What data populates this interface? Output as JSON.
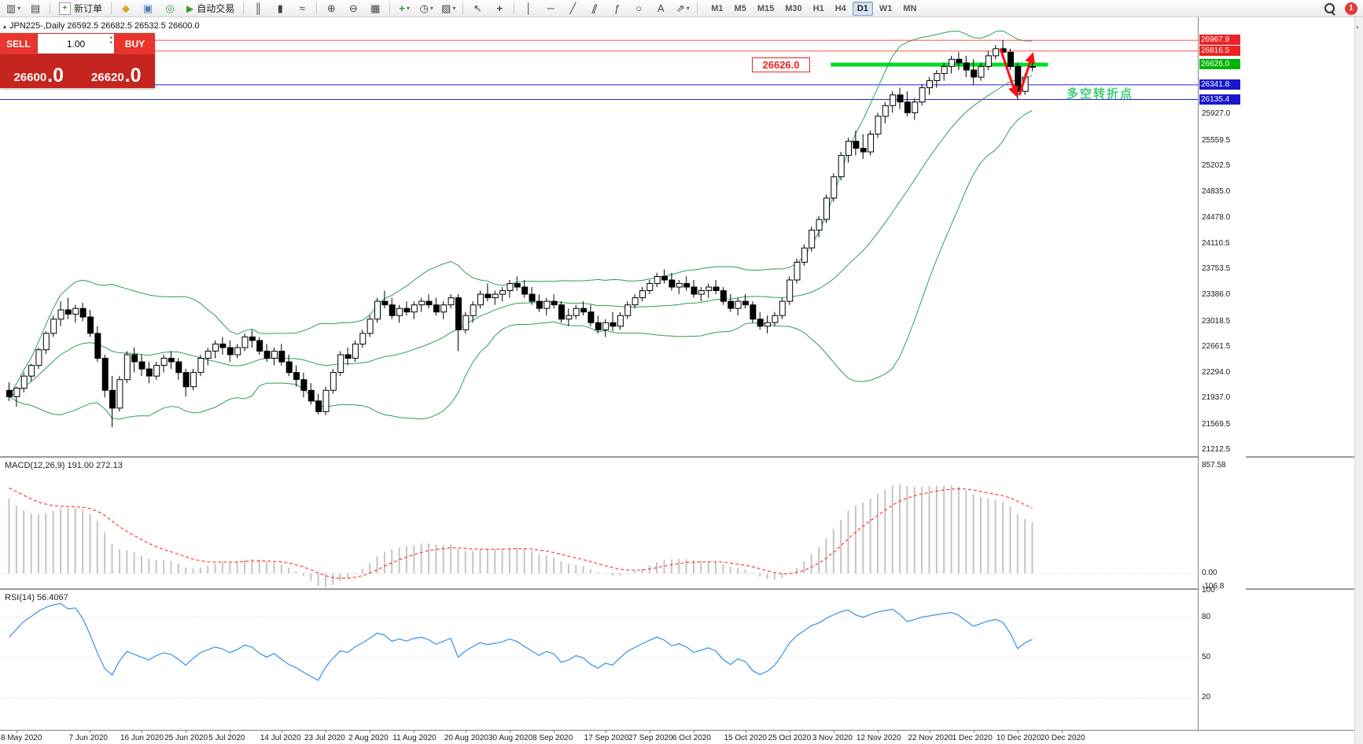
{
  "toolbar": {
    "new_order_label": "新订单",
    "auto_trading_label": "自动交易",
    "timeframes": [
      "M1",
      "M5",
      "M15",
      "M30",
      "H1",
      "H4",
      "D1",
      "W1",
      "MN"
    ],
    "active_timeframe": "D1",
    "notification_count": "1"
  },
  "icons": {
    "new_chart": "▥",
    "profiles": "▤",
    "new_order": "+",
    "market_watch": "◆",
    "data_window": "▣",
    "navigator": "◎",
    "auto_play": "▶",
    "chart_bars": "║",
    "chart_candles": "▮",
    "chart_line": "≈",
    "zoom_in": "⊕",
    "zoom_out": "⊖",
    "tile": "▦",
    "indicators_add": "+",
    "periods": "◷",
    "templates": "▧",
    "cursor": "↖",
    "crosshair": "+",
    "vline": "│",
    "hline": "─",
    "tline": "╱",
    "channel": "∥",
    "fibo": "ƒ",
    "shapes": "○",
    "text_tool": "A",
    "arrows": "⇗",
    "dropdown": "▾",
    "spin_up": "▴",
    "spin_down": "▾",
    "collapse": "▴",
    "scroll_up": "▴"
  },
  "chart_header": {
    "symbol_info": "JPN225-,Daily  26592.5 26682.5 26532.5 26600.0"
  },
  "trade_panel": {
    "sell_label": "SELL",
    "buy_label": "BUY",
    "volume": "1.00",
    "sell_price_main": "26600",
    "sell_price_frac": ".0",
    "buy_price_main": "26620",
    "buy_price_frac": ".0"
  },
  "annotations": {
    "pivot_label": "26626.0",
    "pivot_text": "多空转折点"
  },
  "indicators": {
    "macd_label": "MACD(12,26,9) 191.00 272.13",
    "macd_axis": [
      "857.58",
      "0.00",
      "-106.8"
    ],
    "rsi_label": "RSI(14) 56.4067",
    "rsi_axis": [
      "100",
      "80",
      "50",
      "20"
    ]
  },
  "colors": {
    "bands": "#2d9e55",
    "macd_hist": "#c4c4c4",
    "macd_signal": "#ff3b3b",
    "rsi_line": "#4596e8",
    "annotation_red": "#ff1111",
    "pivot_green": "#3ecf72",
    "candle_up": "#ffffff",
    "candle_down": "#000000"
  },
  "price_axis": {
    "labels": [
      "25927.0",
      "25559.5",
      "25202.5",
      "24835.0",
      "24478.0",
      "24110.5",
      "23753.5",
      "23386.0",
      "23018.5",
      "22661.5",
      "22294.0",
      "21937.0",
      "21569.5",
      "21212.5"
    ],
    "line_labels": [
      {
        "label": "26967.9",
        "price": 26967.9,
        "color": "#ee2222"
      },
      {
        "label": "26816.5",
        "price": 26816.5,
        "color": "#ee2222"
      },
      {
        "label": "26626.0",
        "price": 26626.0,
        "color": "#00b400"
      },
      {
        "label": "26341.8",
        "price": 26341.8,
        "color": "#1818cc"
      },
      {
        "label": "26135.4",
        "price": 26135.4,
        "color": "#1818cc"
      }
    ]
  },
  "time_axis": {
    "labels": [
      "8 May 2020",
      "7 Jun 2020",
      "16 Jun 2020",
      "25 Jun 2020",
      "5 Jul 2020",
      "14 Jul 2020",
      "23 Jul 2020",
      "2 Aug 2020",
      "11 Aug 2020",
      "20 Aug 2020",
      "30 Aug 2020",
      "8 Sep 2020",
      "17 Sep 2020",
      "27 Sep 2020",
      "6 Oct 2020",
      "15 Oct 2020",
      "25 Oct 2020",
      "3 Nov 2020",
      "12 Nov 2020",
      "22 Nov 2020",
      "1 Dec 2020",
      "10 Dec 2020",
      "20 Dec 2020"
    ],
    "bars": [
      1,
      11,
      18,
      24,
      30,
      37,
      43,
      49,
      55,
      62,
      68,
      74,
      81,
      87,
      93,
      100,
      106,
      112,
      118,
      125,
      131,
      137,
      143
    ]
  },
  "chart_data": {
    "type": "candlestick",
    "symbol": "JPN225",
    "period": "Daily",
    "current_ohlc": {
      "open": 26592.5,
      "high": 26682.5,
      "low": 26532.5,
      "close": 26600.0
    },
    "indicators": [
      "Bollinger Bands",
      "MACD(12,26,9)",
      "RSI(14)"
    ],
    "hlines": [
      {
        "price": 26967.9,
        "color": "#ff5555",
        "width": 1
      },
      {
        "price": 26816.5,
        "color": "#ff5555",
        "width": 1
      },
      {
        "price": 26626.0,
        "color": "#00dd22",
        "width": 5,
        "from_bar": 112,
        "to_bar": 141.5
      },
      {
        "price": 26341.8,
        "color": "#2222dd",
        "width": 1
      },
      {
        "price": 26135.4,
        "color": "#2222dd",
        "width": 1
      }
    ],
    "arrow_lines": [
      [
        1272,
        40,
        1292,
        99
      ],
      [
        1296,
        99,
        1313,
        47
      ]
    ],
    "ohlc": [
      [
        22050,
        22160,
        21900,
        21960
      ],
      [
        21960,
        22100,
        21820,
        22080
      ],
      [
        22080,
        22300,
        22020,
        22250
      ],
      [
        22250,
        22420,
        22180,
        22400
      ],
      [
        22400,
        22650,
        22350,
        22620
      ],
      [
        22620,
        22880,
        22560,
        22850
      ],
      [
        22850,
        23100,
        22800,
        23050
      ],
      [
        23050,
        23300,
        22950,
        23180
      ],
      [
        23180,
        23350,
        23050,
        23120
      ],
      [
        23120,
        23250,
        23000,
        23200
      ],
      [
        23200,
        23280,
        23020,
        23080
      ],
      [
        23080,
        23180,
        22800,
        22850
      ],
      [
        22850,
        22950,
        22450,
        22500
      ],
      [
        22500,
        22550,
        21950,
        22050
      ],
      [
        22050,
        22250,
        21530,
        21800
      ],
      [
        21800,
        22250,
        21750,
        22200
      ],
      [
        22200,
        22600,
        22150,
        22550
      ],
      [
        22550,
        22650,
        22300,
        22450
      ],
      [
        22450,
        22550,
        22250,
        22350
      ],
      [
        22350,
        22450,
        22150,
        22250
      ],
      [
        22250,
        22450,
        22200,
        22400
      ],
      [
        22400,
        22550,
        22300,
        22500
      ],
      [
        22500,
        22600,
        22350,
        22450
      ],
      [
        22450,
        22500,
        22200,
        22300
      ],
      [
        22300,
        22350,
        21960,
        22100
      ],
      [
        22100,
        22350,
        22050,
        22300
      ],
      [
        22300,
        22550,
        22250,
        22500
      ],
      [
        22500,
        22650,
        22400,
        22600
      ],
      [
        22600,
        22750,
        22500,
        22700
      ],
      [
        22700,
        22800,
        22550,
        22650
      ],
      [
        22650,
        22750,
        22450,
        22550
      ],
      [
        22550,
        22700,
        22500,
        22650
      ],
      [
        22650,
        22850,
        22600,
        22800
      ],
      [
        22800,
        22900,
        22650,
        22750
      ],
      [
        22750,
        22800,
        22550,
        22600
      ],
      [
        22600,
        22700,
        22450,
        22500
      ],
      [
        22500,
        22650,
        22400,
        22600
      ],
      [
        22600,
        22700,
        22400,
        22450
      ],
      [
        22450,
        22550,
        22250,
        22300
      ],
      [
        22300,
        22400,
        22100,
        22200
      ],
      [
        22200,
        22300,
        21950,
        22050
      ],
      [
        22050,
        22150,
        21850,
        21900
      ],
      [
        21900,
        22000,
        21710,
        21750
      ],
      [
        21750,
        22100,
        21700,
        22050
      ],
      [
        22050,
        22350,
        22000,
        22300
      ],
      [
        22300,
        22600,
        22250,
        22550
      ],
      [
        22550,
        22650,
        22400,
        22500
      ],
      [
        22500,
        22750,
        22450,
        22700
      ],
      [
        22700,
        22900,
        22650,
        22850
      ],
      [
        22850,
        23100,
        22800,
        23050
      ],
      [
        23050,
        23350,
        23000,
        23300
      ],
      [
        23300,
        23450,
        23200,
        23250
      ],
      [
        23250,
        23350,
        23050,
        23100
      ],
      [
        23100,
        23250,
        23000,
        23200
      ],
      [
        23200,
        23300,
        23100,
        23150
      ],
      [
        23150,
        23300,
        23050,
        23250
      ],
      [
        23250,
        23350,
        23150,
        23300
      ],
      [
        23300,
        23400,
        23200,
        23250
      ],
      [
        23250,
        23350,
        23100,
        23150
      ],
      [
        23150,
        23300,
        23050,
        23250
      ],
      [
        23250,
        23400,
        23200,
        23350
      ],
      [
        23350,
        23400,
        22600,
        22900
      ],
      [
        22900,
        23150,
        22850,
        23100
      ],
      [
        23100,
        23300,
        23000,
        23250
      ],
      [
        23250,
        23450,
        23200,
        23400
      ],
      [
        23400,
        23550,
        23300,
        23350
      ],
      [
        23350,
        23450,
        23250,
        23400
      ],
      [
        23400,
        23500,
        23300,
        23450
      ],
      [
        23450,
        23600,
        23350,
        23550
      ],
      [
        23550,
        23650,
        23450,
        23500
      ],
      [
        23500,
        23600,
        23350,
        23400
      ],
      [
        23400,
        23500,
        23250,
        23300
      ],
      [
        23300,
        23400,
        23150,
        23200
      ],
      [
        23200,
        23350,
        23100,
        23300
      ],
      [
        23300,
        23400,
        23200,
        23250
      ],
      [
        23250,
        23300,
        23000,
        23050
      ],
      [
        23050,
        23200,
        22950,
        23100
      ],
      [
        23100,
        23250,
        23050,
        23200
      ],
      [
        23200,
        23300,
        23100,
        23150
      ],
      [
        23150,
        23250,
        22950,
        23000
      ],
      [
        23000,
        23100,
        22850,
        22900
      ],
      [
        22900,
        23050,
        22800,
        23000
      ],
      [
        23000,
        23150,
        22880,
        22950
      ],
      [
        22950,
        23150,
        22900,
        23100
      ],
      [
        23100,
        23300,
        23050,
        23250
      ],
      [
        23250,
        23400,
        23200,
        23350
      ],
      [
        23350,
        23500,
        23300,
        23450
      ],
      [
        23450,
        23600,
        23400,
        23550
      ],
      [
        23550,
        23700,
        23500,
        23650
      ],
      [
        23650,
        23750,
        23550,
        23600
      ],
      [
        23600,
        23700,
        23450,
        23500
      ],
      [
        23500,
        23600,
        23400,
        23550
      ],
      [
        23550,
        23650,
        23450,
        23500
      ],
      [
        23500,
        23600,
        23350,
        23400
      ],
      [
        23400,
        23500,
        23300,
        23450
      ],
      [
        23450,
        23550,
        23350,
        23500
      ],
      [
        23500,
        23600,
        23400,
        23450
      ],
      [
        23450,
        23500,
        23250,
        23300
      ],
      [
        23300,
        23400,
        23150,
        23200
      ],
      [
        23200,
        23350,
        23100,
        23300
      ],
      [
        23300,
        23400,
        23200,
        23250
      ],
      [
        23250,
        23300,
        23000,
        23050
      ],
      [
        23050,
        23150,
        22900,
        22950
      ],
      [
        22950,
        23100,
        22850,
        23000
      ],
      [
        23000,
        23150,
        22950,
        23100
      ],
      [
        23100,
        23350,
        23050,
        23300
      ],
      [
        23300,
        23650,
        23250,
        23600
      ],
      [
        23600,
        23900,
        23550,
        23850
      ],
      [
        23850,
        24100,
        23800,
        24050
      ],
      [
        24050,
        24350,
        24000,
        24300
      ],
      [
        24300,
        24500,
        24200,
        24450
      ],
      [
        24450,
        24800,
        24400,
        24750
      ],
      [
        24750,
        25100,
        24700,
        25050
      ],
      [
        25050,
        25400,
        25000,
        25350
      ],
      [
        25350,
        25600,
        25250,
        25550
      ],
      [
        25550,
        25700,
        25350,
        25450
      ],
      [
        25450,
        25650,
        25300,
        25400
      ],
      [
        25400,
        25700,
        25350,
        25650
      ],
      [
        25650,
        25950,
        25600,
        25900
      ],
      [
        25900,
        26100,
        25800,
        26050
      ],
      [
        26050,
        26250,
        25950,
        26200
      ],
      [
        26200,
        26300,
        26000,
        26100
      ],
      [
        26100,
        26250,
        25900,
        25950
      ],
      [
        25950,
        26150,
        25850,
        26100
      ],
      [
        26100,
        26350,
        26050,
        26300
      ],
      [
        26300,
        26450,
        26200,
        26400
      ],
      [
        26400,
        26550,
        26300,
        26500
      ],
      [
        26500,
        26650,
        26400,
        26600
      ],
      [
        26600,
        26750,
        26500,
        26700
      ],
      [
        26700,
        26800,
        26550,
        26650
      ],
      [
        26650,
        26750,
        26450,
        26550
      ],
      [
        26550,
        26700,
        26342,
        26450
      ],
      [
        26450,
        26650,
        26400,
        26600
      ],
      [
        26600,
        26817,
        26550,
        26750
      ],
      [
        26750,
        26900,
        26700,
        26850
      ],
      [
        26850,
        26968,
        26750,
        26800
      ],
      [
        26800,
        26850,
        26550,
        26600
      ],
      [
        26600,
        26650,
        26135,
        26250
      ],
      [
        26250,
        26500,
        26200,
        26450
      ],
      [
        26592.5,
        26682.5,
        26532.5,
        26600.0
      ]
    ]
  }
}
